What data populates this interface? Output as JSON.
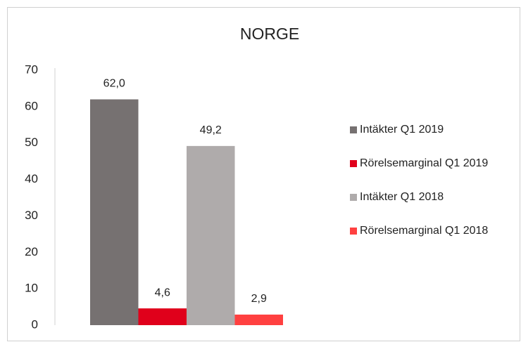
{
  "chart_data": {
    "type": "bar",
    "title": "NORGE",
    "categories": [
      null
    ],
    "series": [
      {
        "name": "Intäkter Q1 2019",
        "color": "#767171",
        "values": [
          62.0
        ],
        "value_labels": [
          "62,0"
        ]
      },
      {
        "name": "Rörelsemarginal Q1 2019",
        "color": "#e0001b",
        "values": [
          4.6
        ],
        "value_labels": [
          "4,6"
        ]
      },
      {
        "name": "Intäkter Q1 2018",
        "color": "#afabab",
        "values": [
          49.2
        ],
        "value_labels": [
          "49,2"
        ]
      },
      {
        "name": "Rörelsemarginal Q1 2018",
        "color": "#ff4040",
        "values": [
          2.9
        ],
        "value_labels": [
          "2,9"
        ]
      }
    ],
    "ylim": [
      0,
      70
    ],
    "yticks": [
      0,
      10,
      20,
      30,
      40,
      50,
      60,
      70
    ],
    "grid": false,
    "legend": "right"
  }
}
